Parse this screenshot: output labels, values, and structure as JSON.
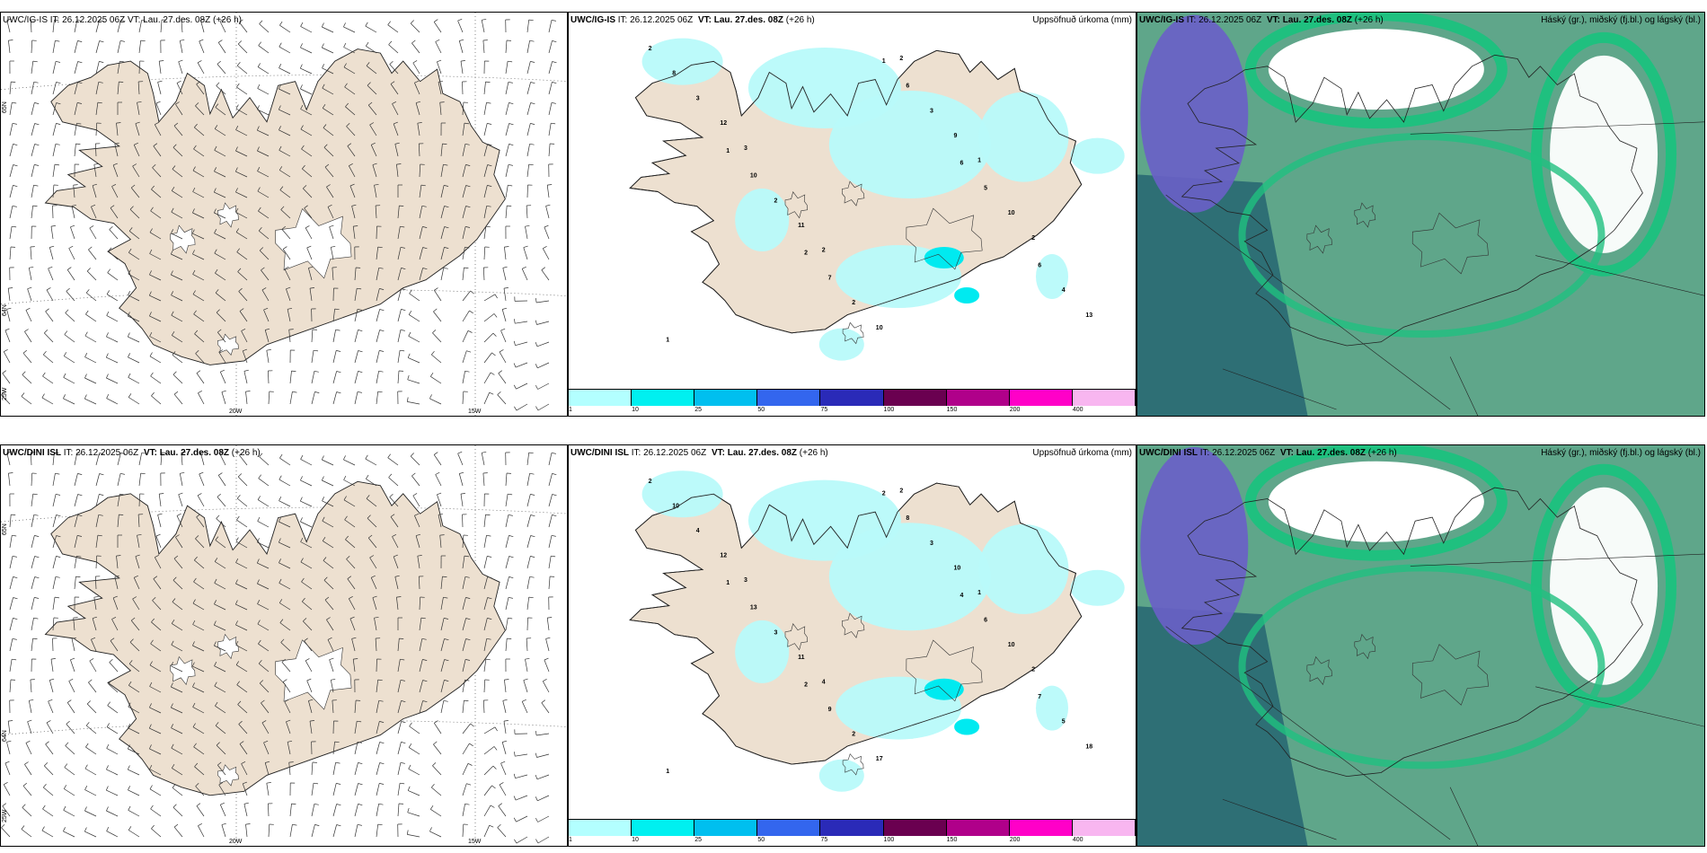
{
  "rows": [
    {
      "model": "UWC/IG-IS",
      "wind_title": "UWC/IG-IS IT: 26.12.2025 06Z VT: Lau. 27.des. 08Z (+26 h)",
      "it_label": "IT: 26.12.2025 06Z",
      "vt_label": "VT: Lau. 27.des. 08Z",
      "lead": "(+26 h)",
      "precip_numbers": [
        "2",
        "1",
        "2",
        "1",
        "6",
        "6",
        "8",
        "10",
        "7",
        "6",
        "5",
        "4",
        "3",
        "2",
        "2",
        "3",
        "10",
        "13",
        "12",
        "11",
        "10",
        "9",
        "2",
        "1",
        "3",
        "2",
        "2",
        "1"
      ]
    },
    {
      "model": "UWC/DINI ISL",
      "wind_title": "UWC/DINI ISL IT: 26.12.2025 06Z VT: Lau. 27.des. 08Z (+26 h)",
      "it_label": "IT: 26.12.2025 06Z",
      "vt_label": "VT: Lau. 27.des. 08Z",
      "lead": "(+26 h)",
      "precip_numbers": [
        "2",
        "1",
        "2",
        "2",
        "4",
        "7",
        "10",
        "13",
        "9",
        "8",
        "6",
        "5",
        "4",
        "3",
        "2",
        "3",
        "10",
        "18",
        "12",
        "11",
        "17",
        "10",
        "2",
        "1",
        "3",
        "4",
        "2",
        "1"
      ]
    }
  ],
  "precip_title": "Uppsöfnuð úrkoma (mm)",
  "cloud_title": "Háský (gr.), miðský (fj.bl.) og lágský (bl.)",
  "lat_labels": [
    "65N",
    "64N",
    "25W"
  ],
  "lon_labels": [
    "20W",
    "15W"
  ],
  "precip_scale": {
    "labels": [
      "1",
      "10",
      "25",
      "50",
      "75",
      "100",
      "150",
      "200",
      "400"
    ],
    "colors": [
      "#b3ffff",
      "#00f0f0",
      "#00bfef",
      "#3366ee",
      "#2a2ab8",
      "#6a0050",
      "#b0008a",
      "#ff00c8",
      "#f8b6f0"
    ]
  },
  "colors": {
    "land": "#ede0d0",
    "precip_light": "#b8fafa",
    "cloud_low": "#5fa68a",
    "cloud_mid": "#1fc07f",
    "cloud_high_dark": "#2e6f75",
    "cloud_violet": "#6a5fc8"
  }
}
